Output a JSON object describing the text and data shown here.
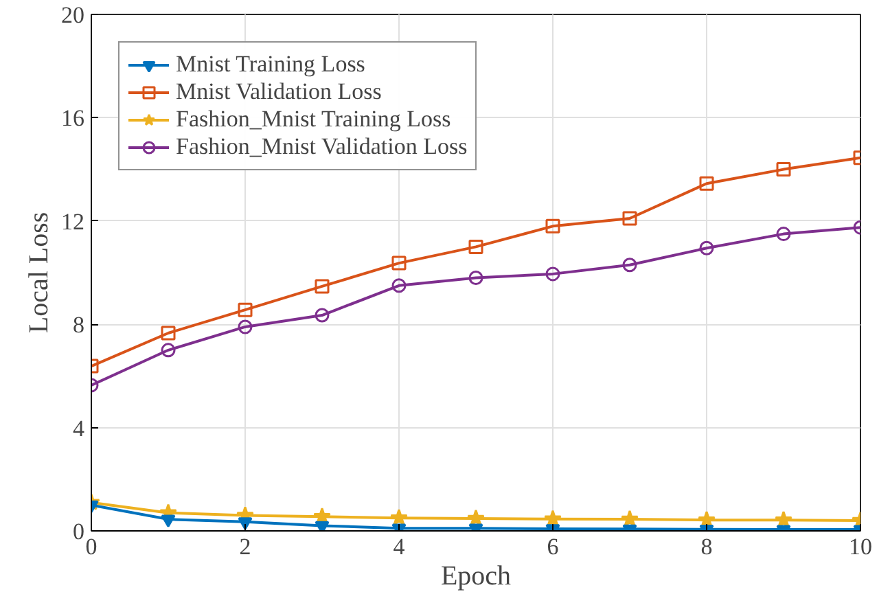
{
  "chart_data": {
    "type": "line",
    "xlabel": "Epoch",
    "ylabel": "Local Loss",
    "x": [
      0,
      1,
      2,
      3,
      4,
      5,
      6,
      7,
      8,
      9,
      10
    ],
    "series": [
      {
        "name": "Mnist Training Loss",
        "color": "#0072bd",
        "marker": "triangle",
        "values": [
          1.0,
          0.45,
          0.35,
          0.2,
          0.1,
          0.1,
          0.08,
          0.07,
          0.06,
          0.05,
          0.05
        ]
      },
      {
        "name": "Mnist Validation Loss",
        "color": "#d95319",
        "marker": "square",
        "values": [
          6.38,
          7.66,
          8.56,
          9.47,
          10.37,
          11.0,
          11.8,
          12.1,
          13.45,
          14.0,
          14.45
        ]
      },
      {
        "name": "Fashion_Mnist Training Loss",
        "color": "#edb120",
        "marker": "star",
        "values": [
          1.1,
          0.7,
          0.6,
          0.55,
          0.5,
          0.48,
          0.46,
          0.45,
          0.42,
          0.42,
          0.4
        ]
      },
      {
        "name": "Fashion_Mnist Validation Loss",
        "color": "#7e2f8e",
        "marker": "circle",
        "values": [
          5.64,
          7.0,
          7.9,
          8.35,
          9.5,
          9.8,
          9.95,
          10.3,
          10.95,
          11.5,
          11.75
        ]
      }
    ],
    "xlim": [
      0,
      10
    ],
    "ylim": [
      0,
      20
    ],
    "xticks": [
      0,
      2,
      4,
      6,
      8,
      10
    ],
    "yticks": [
      0,
      4,
      8,
      12,
      16,
      20
    ],
    "grid": true,
    "legend": "top left",
    "line_style": "solid"
  }
}
